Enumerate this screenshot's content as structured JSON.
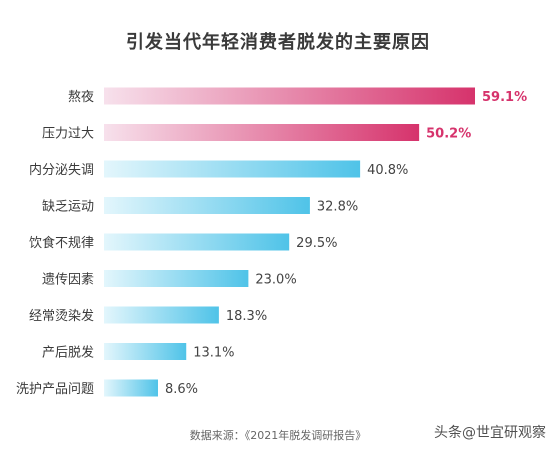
{
  "chart_data": {
    "type": "bar",
    "orientation": "horizontal",
    "title": "引发当代年轻消费者脱发的主要原因",
    "categories": [
      "熬夜",
      "压力过大",
      "内分泌失调",
      "缺乏运动",
      "饮食不规律",
      "遗传因素",
      "经常烫染发",
      "产后脱发",
      "洗护产品问题"
    ],
    "values": [
      59.1,
      50.2,
      40.8,
      32.8,
      29.5,
      23.0,
      18.3,
      13.1,
      8.6
    ],
    "value_labels": [
      "59.1%",
      "50.2%",
      "40.8%",
      "32.8%",
      "29.5%",
      "23.0%",
      "18.3%",
      "13.1%",
      "8.6%"
    ],
    "highlight_count": 2,
    "xlim": [
      0,
      59.1
    ],
    "grid": false,
    "legend": "none",
    "colors": {
      "highlight_start": "#f7e1ec",
      "highlight_end": "#d6336c",
      "highlight_label": "#d6336c",
      "normal_start": "#e3f6fc",
      "normal_end": "#4fc3e8",
      "normal_label": "#444444"
    }
  },
  "source": "数据来源：《2021年脱发调研报告》",
  "watermark": "头条@世宜研观察"
}
